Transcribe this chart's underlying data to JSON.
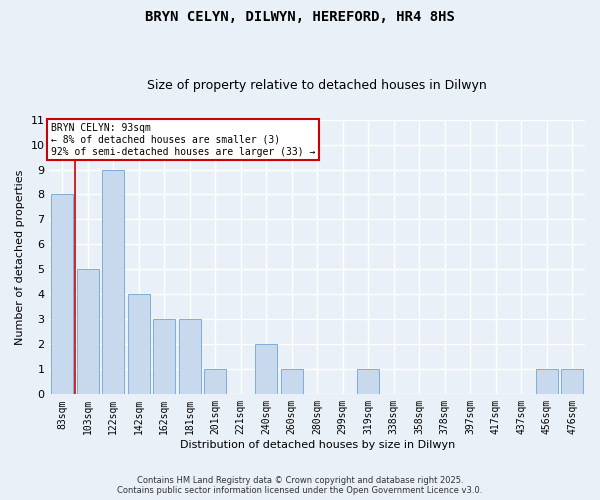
{
  "title1": "BRYN CELYN, DILWYN, HEREFORD, HR4 8HS",
  "title2": "Size of property relative to detached houses in Dilwyn",
  "xlabel": "Distribution of detached houses by size in Dilwyn",
  "ylabel": "Number of detached properties",
  "categories": [
    "83sqm",
    "103sqm",
    "122sqm",
    "142sqm",
    "162sqm",
    "181sqm",
    "201sqm",
    "221sqm",
    "240sqm",
    "260sqm",
    "280sqm",
    "299sqm",
    "319sqm",
    "338sqm",
    "358sqm",
    "378sqm",
    "397sqm",
    "417sqm",
    "437sqm",
    "456sqm",
    "476sqm"
  ],
  "values": [
    8,
    5,
    9,
    4,
    3,
    3,
    1,
    0,
    2,
    1,
    0,
    0,
    1,
    0,
    0,
    0,
    0,
    0,
    0,
    1,
    1
  ],
  "bar_color": "#c9d9ed",
  "bar_edge_color": "#7bafd4",
  "annotation_text": "BRYN CELYN: 93sqm\n← 8% of detached houses are smaller (3)\n92% of semi-detached houses are larger (33) →",
  "annotation_box_color": "#ffffff",
  "annotation_box_edge": "#cc0000",
  "ylim": [
    0,
    11
  ],
  "yticks": [
    0,
    1,
    2,
    3,
    4,
    5,
    6,
    7,
    8,
    9,
    10,
    11
  ],
  "background_color": "#eaf0f8",
  "grid_color": "#ffffff",
  "footer1": "Contains HM Land Registry data © Crown copyright and database right 2025.",
  "footer2": "Contains public sector information licensed under the Open Government Licence v3.0."
}
